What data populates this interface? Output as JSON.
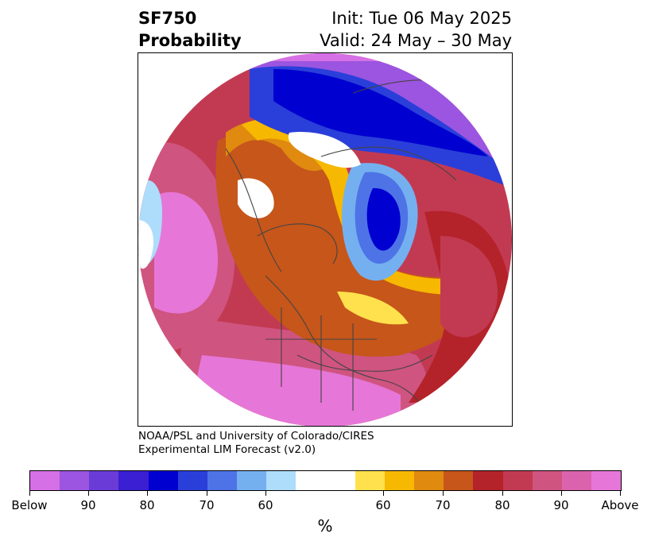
{
  "title": {
    "left_line1": "SF750",
    "left_line2": "Probability",
    "right_line1": "Init: Tue 06 May 2025",
    "right_line2": "Valid: 24 May – 30 May"
  },
  "credit": {
    "line1": "NOAA/PSL and University of Colorado/CIRES",
    "line2": "Experimental LIM Forecast (v2.0)"
  },
  "colorbar": {
    "colors": [
      "#d670e6",
      "#9b55e0",
      "#6b3bd8",
      "#3a1fd3",
      "#0000d0",
      "#2a3fd9",
      "#4e73e6",
      "#74b0f0",
      "#aedcfb",
      "#ffffff",
      "#ffffff",
      "#ffe14d",
      "#f6b800",
      "#e08a10",
      "#c6561a",
      "#b4232a",
      "#c23a52",
      "#cf5480",
      "#db62ad",
      "#e677d8"
    ],
    "tick_labels": [
      "Below",
      "90",
      "80",
      "70",
      "60",
      "60",
      "70",
      "80",
      "90",
      "Above"
    ],
    "unit": "%"
  },
  "map": {
    "projection": "north-polar-stereographic",
    "region": "Northern Hemisphere, North America at bottom",
    "palette": {
      "pink": "#e677d8",
      "rose": "#cf5480",
      "crimson": "#c23a52",
      "red": "#b4232a",
      "rust": "#c6561a",
      "orange": "#e08a10",
      "gold": "#f6b800",
      "yellow": "#ffe14d",
      "white": "#ffffff",
      "paleblue": "#aedcfb",
      "lightblue": "#74b0f0",
      "blue": "#4e73e6",
      "royal": "#2a3fd9",
      "navy": "#0000d0",
      "indigo": "#3a1fd3",
      "violet": "#6b3bd8",
      "purple": "#9b55e0",
      "magenta": "#d670e6",
      "coast": "#444444"
    }
  }
}
